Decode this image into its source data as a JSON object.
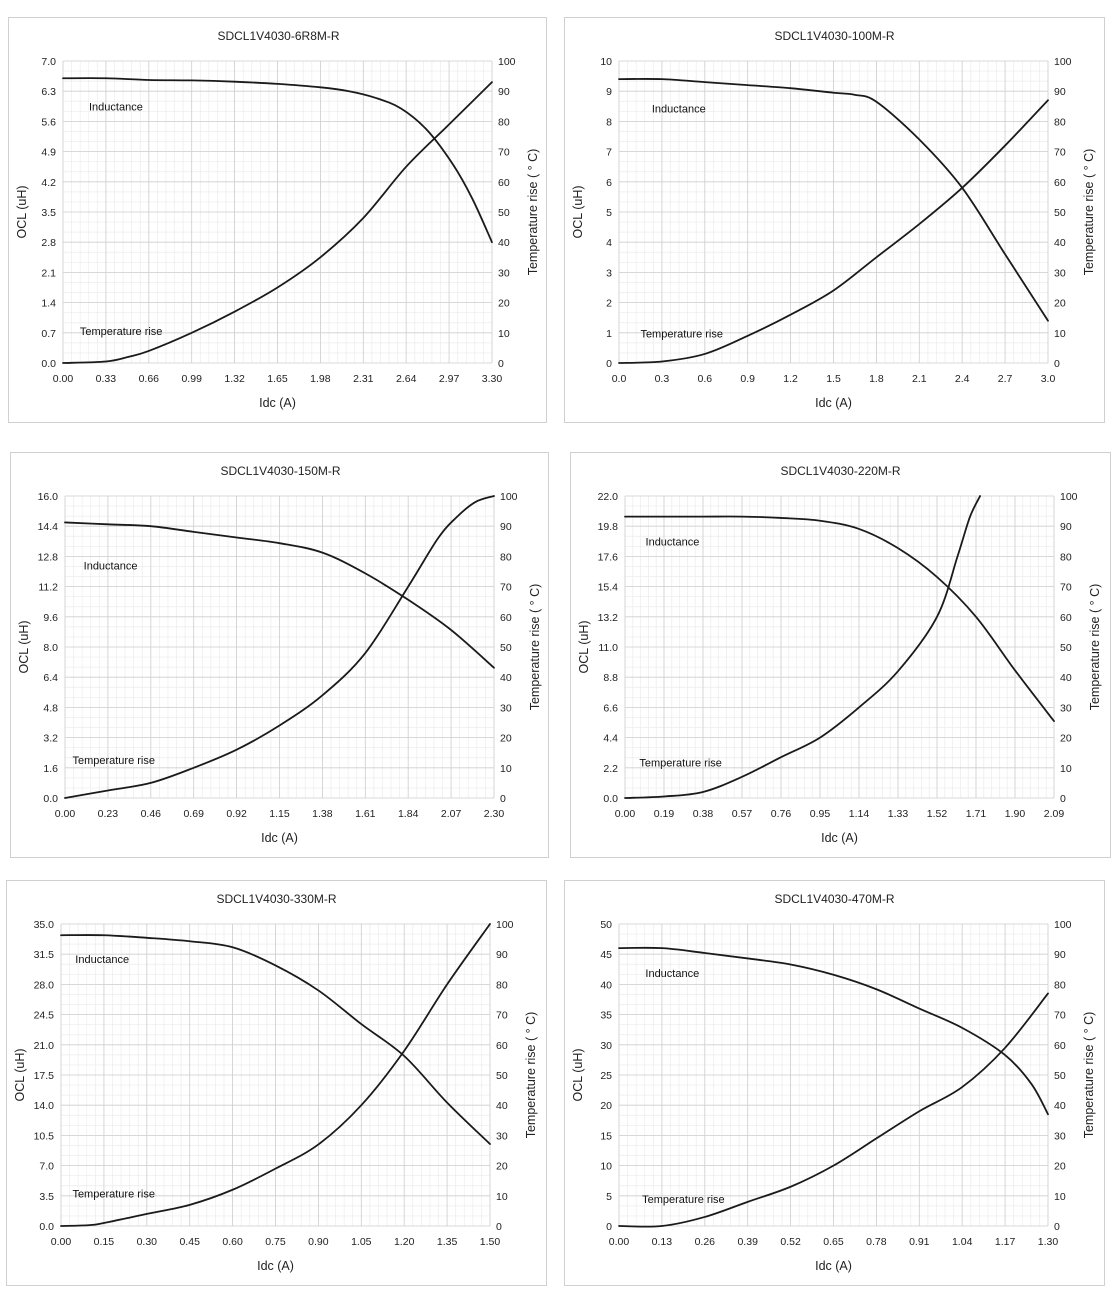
{
  "chart_data": [
    {
      "type": "line",
      "title": "SDCL1V4030-6R8M-R",
      "xlabel": "Idc (A)",
      "ylabel": "OCL (uH)",
      "y2label": "Temperature rise ( ° C)",
      "xlim": [
        0,
        3.3
      ],
      "ylim": [
        0,
        7.0
      ],
      "y2lim": [
        0,
        100
      ],
      "x_ticks": [
        "0.00",
        "0.33",
        "0.66",
        "0.99",
        "1.32",
        "1.65",
        "1.98",
        "2.31",
        "2.64",
        "2.97",
        "3.30"
      ],
      "y_ticks": [
        "0.0",
        "0.7",
        "1.4",
        "2.1",
        "2.8",
        "3.5",
        "4.2",
        "4.9",
        "5.6",
        "6.3",
        "7.0"
      ],
      "y2_ticks": [
        "0",
        "10",
        "20",
        "30",
        "40",
        "50",
        "60",
        "70",
        "80",
        "90",
        "100"
      ],
      "grid": true,
      "series": [
        {
          "name": "Inductance",
          "axis": "left",
          "x": [
            0,
            0.33,
            0.66,
            0.99,
            1.32,
            1.65,
            1.98,
            2.2,
            2.4,
            2.6,
            2.8,
            3.0,
            3.15,
            3.3
          ],
          "values": [
            6.6,
            6.6,
            6.56,
            6.55,
            6.52,
            6.47,
            6.39,
            6.3,
            6.15,
            5.9,
            5.4,
            4.6,
            3.8,
            2.8
          ]
        },
        {
          "name": "Temperature rise",
          "axis": "right",
          "x": [
            0,
            0.33,
            0.5,
            0.66,
            0.99,
            1.32,
            1.65,
            1.98,
            2.31,
            2.64,
            2.97,
            3.3
          ],
          "values": [
            0,
            0.5,
            2,
            4,
            10,
            17,
            25,
            35,
            48,
            65,
            79,
            93
          ]
        }
      ],
      "annotations": [
        {
          "text": "Inductance",
          "x": 0.2,
          "y": 5.85,
          "axis": "left"
        },
        {
          "text": "Temperature rise",
          "x": 0.13,
          "y": 0.65,
          "axis": "left"
        }
      ]
    },
    {
      "type": "line",
      "title": "SDCL1V4030-100M-R",
      "xlabel": "Idc (A)",
      "ylabel": "OCL (uH)",
      "y2label": "Temperature rise ( ° C)",
      "xlim": [
        0,
        3.0
      ],
      "ylim": [
        0,
        10
      ],
      "y2lim": [
        0,
        100
      ],
      "x_ticks": [
        "0.0",
        "0.3",
        "0.6",
        "0.9",
        "1.2",
        "1.5",
        "1.8",
        "2.1",
        "2.4",
        "2.7",
        "3.0"
      ],
      "y_ticks": [
        "0",
        "1",
        "2",
        "3",
        "4",
        "5",
        "6",
        "7",
        "8",
        "9",
        "10"
      ],
      "y2_ticks": [
        "0",
        "10",
        "20",
        "30",
        "40",
        "50",
        "60",
        "70",
        "80",
        "90",
        "100"
      ],
      "grid": true,
      "series": [
        {
          "name": "Inductance",
          "axis": "left",
          "x": [
            0,
            0.3,
            0.6,
            0.9,
            1.2,
            1.5,
            1.65,
            1.8,
            2.1,
            2.4,
            2.7,
            3.0
          ],
          "values": [
            9.4,
            9.4,
            9.3,
            9.2,
            9.1,
            8.95,
            8.88,
            8.65,
            7.4,
            5.8,
            3.6,
            1.4
          ]
        },
        {
          "name": "Temperature rise",
          "axis": "right",
          "x": [
            0,
            0.3,
            0.6,
            0.9,
            1.2,
            1.5,
            1.8,
            2.1,
            2.4,
            2.7,
            3.0
          ],
          "values": [
            0,
            0.5,
            3,
            9,
            16,
            24,
            35,
            46,
            58,
            72,
            87
          ]
        }
      ],
      "annotations": [
        {
          "text": "Inductance",
          "x": 0.23,
          "y": 8.3,
          "axis": "left"
        },
        {
          "text": "Temperature rise",
          "x": 0.15,
          "y": 0.85,
          "axis": "left"
        }
      ]
    },
    {
      "type": "line",
      "title": "SDCL1V4030-150M-R",
      "xlabel": "Idc (A)",
      "ylabel": "OCL (uH)",
      "y2label": "Temperature rise ( ° C)",
      "xlim": [
        0,
        2.3
      ],
      "ylim": [
        0,
        16.0
      ],
      "y2lim": [
        0,
        100
      ],
      "x_ticks": [
        "0.00",
        "0.23",
        "0.46",
        "0.69",
        "0.92",
        "1.15",
        "1.38",
        "1.61",
        "1.84",
        "2.07",
        "2.30"
      ],
      "y_ticks": [
        "0.0",
        "1.6",
        "3.2",
        "4.8",
        "6.4",
        "8.0",
        "9.6",
        "11.2",
        "12.8",
        "14.4",
        "16.0"
      ],
      "y2_ticks": [
        "0",
        "10",
        "20",
        "30",
        "40",
        "50",
        "60",
        "70",
        "80",
        "90",
        "100"
      ],
      "grid": true,
      "series": [
        {
          "name": "Inductance",
          "axis": "left",
          "x": [
            0,
            0.23,
            0.46,
            0.69,
            0.92,
            1.15,
            1.38,
            1.61,
            1.84,
            2.07,
            2.3
          ],
          "values": [
            14.6,
            14.5,
            14.4,
            14.1,
            13.8,
            13.5,
            13.0,
            11.9,
            10.5,
            8.9,
            6.9
          ]
        },
        {
          "name": "Temperature rise",
          "axis": "right",
          "x": [
            0,
            0.23,
            0.46,
            0.69,
            0.92,
            1.15,
            1.38,
            1.61,
            1.84,
            2.0,
            2.1,
            2.2,
            2.3
          ],
          "values": [
            0,
            2.5,
            5,
            10,
            16,
            24,
            34,
            48,
            70,
            86,
            93,
            98,
            100
          ]
        }
      ],
      "annotations": [
        {
          "text": "Inductance",
          "x": 0.1,
          "y": 12.1,
          "axis": "left"
        },
        {
          "text": "Temperature rise",
          "x": 0.04,
          "y": 1.8,
          "axis": "left"
        }
      ]
    },
    {
      "type": "line",
      "title": "SDCL1V4030-220M-R",
      "xlabel": "Idc (A)",
      "ylabel": "OCL (uH)",
      "y2label": "Temperature rise ( ° C)",
      "xlim": [
        0,
        2.09
      ],
      "ylim": [
        0,
        22.0
      ],
      "y2lim": [
        0,
        100
      ],
      "x_ticks": [
        "0.00",
        "0.19",
        "0.38",
        "0.57",
        "0.76",
        "0.95",
        "1.14",
        "1.33",
        "1.52",
        "1.71",
        "1.90",
        "2.09"
      ],
      "y_ticks": [
        "0.0",
        "2.2",
        "4.4",
        "6.6",
        "8.8",
        "11.0",
        "13.2",
        "15.4",
        "17.6",
        "19.8",
        "22.0"
      ],
      "y2_ticks": [
        "0",
        "10",
        "20",
        "30",
        "40",
        "50",
        "60",
        "70",
        "80",
        "90",
        "100"
      ],
      "grid": true,
      "series": [
        {
          "name": "Inductance",
          "axis": "left",
          "x": [
            0,
            0.19,
            0.38,
            0.57,
            0.76,
            0.95,
            1.14,
            1.33,
            1.52,
            1.71,
            1.9,
            2.09
          ],
          "values": [
            20.5,
            20.5,
            20.5,
            20.5,
            20.4,
            20.2,
            19.6,
            18.2,
            16.1,
            13.2,
            9.3,
            5.6
          ]
        },
        {
          "name": "Temperature rise",
          "axis": "right",
          "x": [
            0,
            0.19,
            0.38,
            0.57,
            0.76,
            0.95,
            1.14,
            1.33,
            1.52,
            1.62,
            1.68,
            1.73
          ],
          "values": [
            0,
            0.5,
            2,
            7,
            13.5,
            20,
            30,
            42,
            60,
            80,
            93,
            100
          ]
        }
      ],
      "annotations": [
        {
          "text": "Inductance",
          "x": 0.1,
          "y": 18.4,
          "axis": "left"
        },
        {
          "text": "Temperature rise",
          "x": 0.07,
          "y": 2.3,
          "axis": "left"
        }
      ]
    },
    {
      "type": "line",
      "title": "SDCL1V4030-330M-R",
      "xlabel": "Idc (A)",
      "ylabel": "OCL (uH)",
      "y2label": "Temperature rise ( ° C)",
      "xlim": [
        0,
        1.5
      ],
      "ylim": [
        0,
        35.0
      ],
      "y2lim": [
        0,
        100
      ],
      "x_ticks": [
        "0.00",
        "0.15",
        "0.30",
        "0.45",
        "0.60",
        "0.75",
        "0.90",
        "1.05",
        "1.20",
        "1.35",
        "1.50"
      ],
      "y_ticks": [
        "0.0",
        "3.5",
        "7.0",
        "10.5",
        "14.0",
        "17.5",
        "21.0",
        "24.5",
        "28.0",
        "31.5",
        "35.0"
      ],
      "y2_ticks": [
        "0",
        "10",
        "20",
        "30",
        "40",
        "50",
        "60",
        "70",
        "80",
        "90",
        "100"
      ],
      "grid": true,
      "series": [
        {
          "name": "Inductance",
          "axis": "left",
          "x": [
            0,
            0.15,
            0.3,
            0.45,
            0.6,
            0.75,
            0.9,
            1.05,
            1.2,
            1.35,
            1.5
          ],
          "values": [
            33.7,
            33.7,
            33.4,
            33.0,
            32.3,
            30.2,
            27.3,
            23.4,
            19.7,
            14.3,
            9.5
          ]
        },
        {
          "name": "Temperature rise",
          "axis": "right",
          "x": [
            0,
            0.1,
            0.15,
            0.3,
            0.45,
            0.6,
            0.75,
            0.9,
            1.05,
            1.2,
            1.35,
            1.5
          ],
          "values": [
            0,
            0.3,
            1,
            4,
            7,
            12,
            19,
            27,
            40,
            58,
            80,
            100
          ]
        }
      ],
      "annotations": [
        {
          "text": "Inductance",
          "x": 0.05,
          "y": 30.5,
          "axis": "left"
        },
        {
          "text": "Temperature rise",
          "x": 0.04,
          "y": 3.3,
          "axis": "left"
        }
      ]
    },
    {
      "type": "line",
      "title": "SDCL1V4030-470M-R",
      "xlabel": "Idc (A)",
      "ylabel": "OCL (uH)",
      "y2label": "Temperature rise ( ° C)",
      "xlim": [
        0,
        1.3
      ],
      "ylim": [
        0,
        50
      ],
      "y2lim": [
        0,
        100
      ],
      "x_ticks": [
        "0.00",
        "0.13",
        "0.26",
        "0.39",
        "0.52",
        "0.65",
        "0.78",
        "0.91",
        "1.04",
        "1.17",
        "1.30"
      ],
      "y_ticks": [
        "0",
        "5",
        "10",
        "15",
        "20",
        "25",
        "30",
        "35",
        "40",
        "45",
        "50"
      ],
      "y2_ticks": [
        "0",
        "10",
        "20",
        "30",
        "40",
        "50",
        "60",
        "70",
        "80",
        "90",
        "100"
      ],
      "grid": true,
      "series": [
        {
          "name": "Inductance",
          "axis": "left",
          "x": [
            0,
            0.13,
            0.26,
            0.39,
            0.52,
            0.65,
            0.78,
            0.91,
            1.04,
            1.17,
            1.25,
            1.3
          ],
          "values": [
            46.0,
            46.0,
            45.2,
            44.3,
            43.3,
            41.6,
            39.2,
            36.0,
            32.8,
            28.3,
            23.5,
            18.5
          ]
        },
        {
          "name": "Temperature rise",
          "axis": "right",
          "x": [
            0,
            0.13,
            0.26,
            0.39,
            0.52,
            0.65,
            0.78,
            0.91,
            1.04,
            1.17,
            1.3
          ],
          "values": [
            0,
            0,
            3,
            8,
            13,
            20,
            29,
            38,
            46,
            59,
            77
          ]
        }
      ],
      "annotations": [
        {
          "text": "Inductance",
          "x": 0.08,
          "y": 41.2,
          "axis": "left"
        },
        {
          "text": "Temperature rise",
          "x": 0.07,
          "y": 3.8,
          "axis": "left"
        }
      ]
    }
  ]
}
